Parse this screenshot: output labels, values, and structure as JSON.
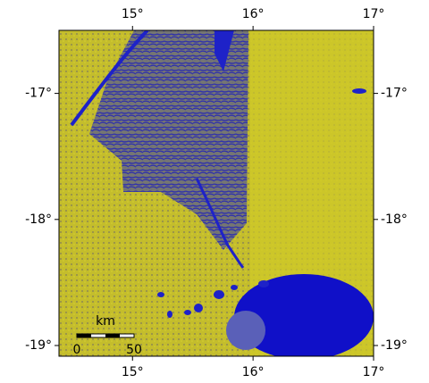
{
  "map": {
    "xlim": [
      14.39,
      17.0
    ],
    "ylim": [
      -16.5,
      -19.085
    ],
    "xticks": [
      {
        "value": 15,
        "label": "15°"
      },
      {
        "value": 16,
        "label": "16°"
      },
      {
        "value": 17,
        "label": "17°"
      }
    ],
    "yticks": [
      {
        "value": -17,
        "label": "-17°"
      },
      {
        "value": -18,
        "label": "-18°"
      },
      {
        "value": -19,
        "label": "-19°"
      }
    ],
    "scale_bar": {
      "unit": "km",
      "labels": [
        "0",
        "50"
      ]
    }
  }
}
